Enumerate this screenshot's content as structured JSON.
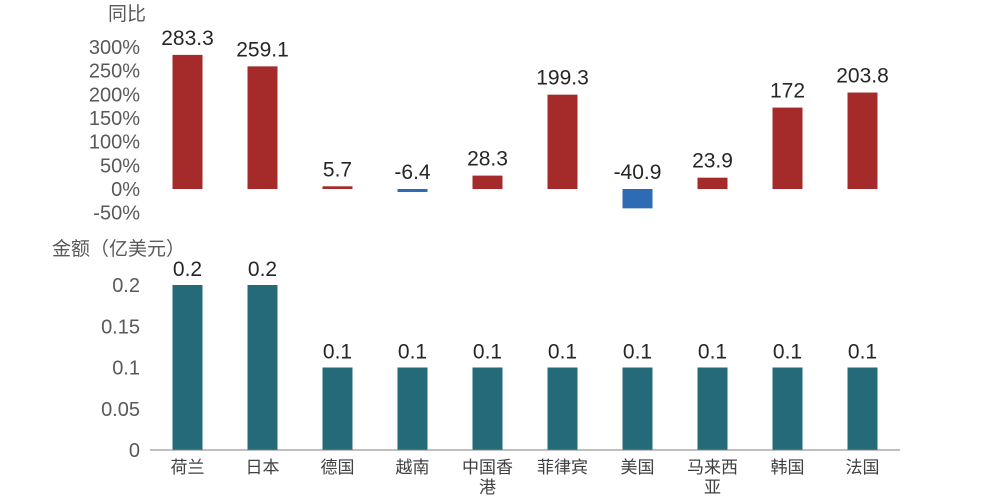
{
  "colors": {
    "positive": "#A52A2A",
    "negative": "#2E6BB5",
    "amount": "#256A78",
    "axis": "#7F7F7F"
  },
  "chart_data": [
    {
      "type": "bar",
      "ylabel": "同比",
      "y_unit": "%",
      "ylim": [
        -50,
        300
      ],
      "yticks": [
        "300%",
        "250%",
        "200%",
        "150%",
        "100%",
        "50%",
        "0%",
        "-50%"
      ],
      "categories": [
        "荷兰",
        "日本",
        "德国",
        "越南",
        "中国香港",
        "菲律宾",
        "美国",
        "马来西亚",
        "韩国",
        "法国"
      ],
      "values": [
        283.3,
        259.1,
        5.7,
        -6.4,
        28.3,
        199.3,
        -40.9,
        23.9,
        172,
        203.8
      ],
      "data_labels": [
        "283.3",
        "259.1",
        "5.7",
        "-6.4",
        "28.3",
        "199.3",
        "-40.9",
        "23.9",
        "172",
        "203.8"
      ],
      "grid": false
    },
    {
      "type": "bar",
      "ylabel": "金额（亿美元）",
      "ylim": [
        0,
        0.2
      ],
      "yticks": [
        "0.2",
        "0.15",
        "0.1",
        "0.05",
        "0"
      ],
      "categories": [
        "荷兰",
        "日本",
        "德国",
        "越南",
        "中国香港",
        "菲律宾",
        "美国",
        "马来西亚",
        "韩国",
        "法国"
      ],
      "category_label_lines": [
        [
          "荷兰"
        ],
        [
          "日本"
        ],
        [
          "德国"
        ],
        [
          "越南"
        ],
        [
          "中国香",
          "港"
        ],
        [
          "菲律宾"
        ],
        [
          "美国"
        ],
        [
          "马来西",
          "亚"
        ],
        [
          "韩国"
        ],
        [
          "法国"
        ]
      ],
      "values": [
        0.2,
        0.2,
        0.1,
        0.1,
        0.1,
        0.1,
        0.1,
        0.1,
        0.1,
        0.1
      ],
      "data_labels": [
        "0.2",
        "0.2",
        "0.1",
        "0.1",
        "0.1",
        "0.1",
        "0.1",
        "0.1",
        "0.1",
        "0.1"
      ],
      "grid": false
    }
  ]
}
